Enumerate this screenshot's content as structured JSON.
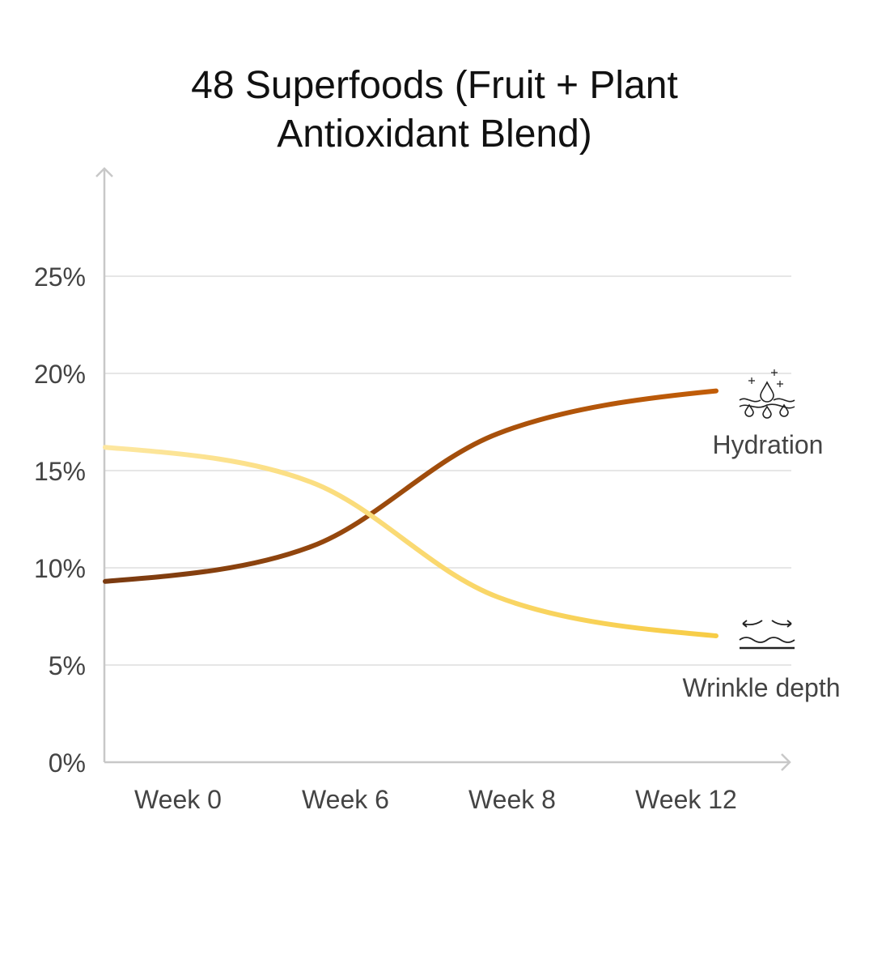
{
  "chart_data": {
    "type": "line",
    "title": "48 Superfoods (Fruit + Plant Antioxidant Blend)",
    "title_lines": [
      "48 Superfoods (Fruit + Plant",
      "Antioxidant Blend)"
    ],
    "categories": [
      "Week 0",
      "Week 6",
      "Week 8",
      "Week 12"
    ],
    "xlabel": "",
    "ylabel": "",
    "ylim": [
      0,
      25
    ],
    "yticks": [
      0,
      5,
      10,
      15,
      20,
      25
    ],
    "ytick_labels": [
      "0%",
      "5%",
      "10%",
      "15%",
      "20%",
      "25%"
    ],
    "grid": true,
    "series": [
      {
        "name": "Hydration",
        "values": [
          9.3,
          11.1,
          16.9,
          19.1
        ],
        "color_start": "#7a3a10",
        "color_end": "#c25d08",
        "icon": "hydration-droplet-icon"
      },
      {
        "name": "Wrinkle depth",
        "values": [
          16.2,
          14.4,
          8.5,
          6.5
        ],
        "color_start": "#fde7a0",
        "color_end": "#f7cc45",
        "icon": "wrinkle-smoothing-icon"
      }
    ]
  }
}
